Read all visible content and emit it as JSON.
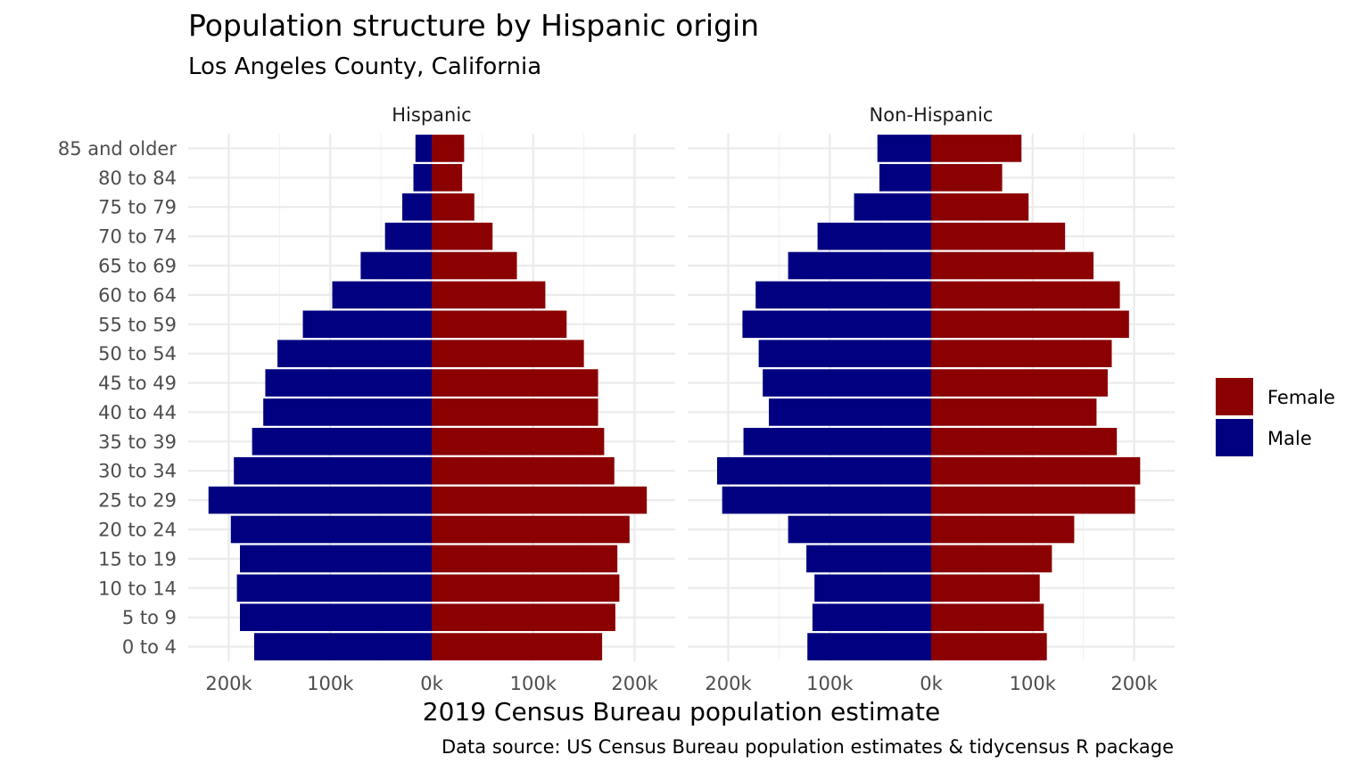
{
  "chart_data": {
    "type": "bar",
    "orientation": "horizontal",
    "title": "Population structure by Hispanic origin",
    "subtitle": "Los Angeles County, California",
    "xlabel": "2019 Census Bureau population estimate",
    "caption": "Data source: US Census Bureau population estimates & tidycensus R package",
    "xlim": [
      -240000,
      240000
    ],
    "x_ticks": [
      -200000,
      -100000,
      0,
      100000,
      200000
    ],
    "x_tick_labels": [
      "200k",
      "100k",
      "0k",
      "100k",
      "200k"
    ],
    "categories": [
      "0 to 4",
      "5 to 9",
      "10 to 14",
      "15 to 19",
      "20 to 24",
      "25 to 29",
      "30 to 34",
      "35 to 39",
      "40 to 44",
      "45 to 49",
      "50 to 54",
      "55 to 59",
      "60 to 64",
      "65 to 69",
      "70 to 74",
      "75 to 79",
      "80 to 84",
      "85 and older"
    ],
    "legend": {
      "placement": "right",
      "entries": [
        "Female",
        "Male"
      ]
    },
    "colors": {
      "Female": "#8b0000",
      "Male": "#000080"
    },
    "panels": [
      {
        "name": "Hispanic",
        "series": [
          {
            "name": "Female",
            "values": [
              168000,
              181000,
              185000,
              183000,
              195000,
              212000,
              180000,
              170000,
              164000,
              164000,
              150000,
              133000,
              112000,
              84000,
              60000,
              42000,
              30000,
              32000
            ]
          },
          {
            "name": "Male",
            "values": [
              -175000,
              -189000,
              -192000,
              -189000,
              -198000,
              -220000,
              -195000,
              -177000,
              -166000,
              -164000,
              -152000,
              -127000,
              -98000,
              -70000,
              -46000,
              -29000,
              -18000,
              -16000
            ]
          }
        ]
      },
      {
        "name": "Non-Hispanic",
        "series": [
          {
            "name": "Female",
            "values": [
              114000,
              111000,
              107000,
              119000,
              141000,
              201000,
              206000,
              183000,
              163000,
              174000,
              178000,
              195000,
              186000,
              160000,
              132000,
              96000,
              70000,
              89000
            ]
          },
          {
            "name": "Male",
            "values": [
              -122000,
              -117000,
              -115000,
              -123000,
              -141000,
              -206000,
              -211000,
              -185000,
              -160000,
              -166000,
              -170000,
              -186000,
              -173000,
              -141000,
              -112000,
              -76000,
              -51000,
              -53000
            ]
          }
        ]
      }
    ]
  }
}
